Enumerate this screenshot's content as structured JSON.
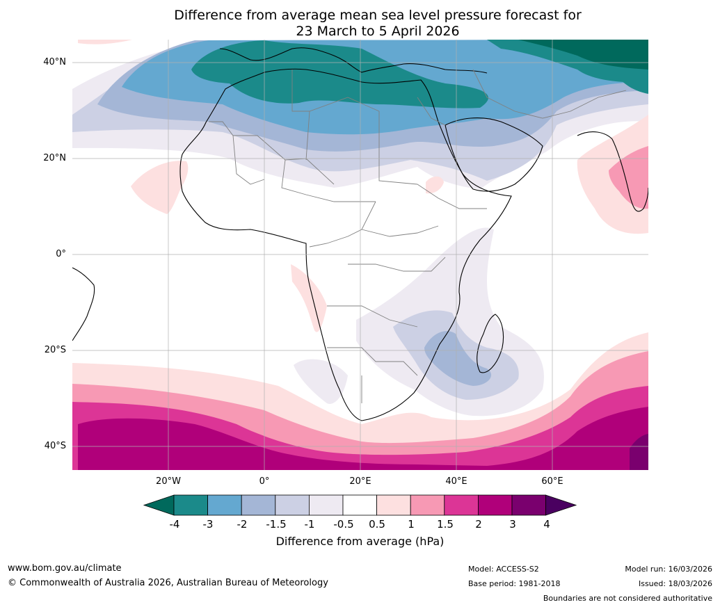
{
  "title": {
    "line1": "Difference from average mean sea level pressure forecast for",
    "line2": "23 March to 5 April 2026"
  },
  "map": {
    "lat_labels": [
      "40°N",
      "20°N",
      "0°",
      "20°S",
      "40°S"
    ],
    "lon_labels": [
      "20°W",
      "0°",
      "20°E",
      "40°E",
      "60°E"
    ]
  },
  "colorbar": {
    "ticks": [
      "-4",
      "-3",
      "-2",
      "-1.5",
      "-1",
      "-0.5",
      "0.5",
      "1",
      "1.5",
      "2",
      "3",
      "4"
    ],
    "label": "Difference from average (hPa)",
    "colors": {
      "under": "#00695c",
      "bins": [
        "#1b8a8a",
        "#64a8d0",
        "#a4b6d6",
        "#ccd0e4",
        "#eeeaf2",
        "#ffffff",
        "#fde0e0",
        "#f799b4",
        "#dc3596",
        "#b0007a",
        "#7a006e"
      ],
      "over": "#4a0060"
    }
  },
  "footer": {
    "url": "www.bom.gov.au/climate",
    "copyright": "© Commonwealth of Australia 2026, Australian Bureau of Meteorology",
    "model": "Model: ACCESS-S2",
    "base_period": "Base period: 1981-2018",
    "model_run": "Model run: 16/03/2026",
    "issued": "Issued: 18/03/2026",
    "boundaries": "Boundaries are not considered authoritative"
  }
}
